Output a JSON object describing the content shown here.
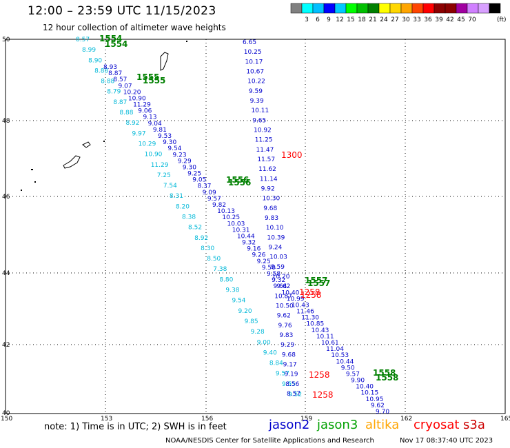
{
  "header": {
    "title": "12:00 – 23:59 UTC 11/15/2023",
    "subtitle": "12 hour collection of altimeter wave heights"
  },
  "colorbar": {
    "colors": [
      "#808080",
      "#00ffff",
      "#00bfff",
      "#0000ff",
      "#00c8ff",
      "#00ff00",
      "#00c000",
      "#008000",
      "#ffff00",
      "#ffd700",
      "#ffa500",
      "#ff4500",
      "#ff0000",
      "#8b0000",
      "#8b0000",
      "#a000a0",
      "#d080ff",
      "#d8a0ff",
      "#000000"
    ],
    "labels": [
      "3",
      "6",
      "9",
      "12",
      "15",
      "18",
      "21",
      "24",
      "27",
      "30",
      "33",
      "36",
      "39",
      "42",
      "45",
      "70"
    ],
    "unit": "(ft)"
  },
  "axes": {
    "lat_ticks": [
      "50",
      "48",
      "46",
      "44",
      "42",
      "40"
    ],
    "lon_ticks": [
      "150",
      "153",
      "156",
      "159",
      "162",
      "165"
    ]
  },
  "tracks": {
    "cyan": [
      "8.57",
      "8.99",
      "8.90",
      "8.88",
      "8.88",
      "8.79",
      "8.87",
      "8.88",
      "8.92",
      "9.97",
      "10.29",
      "10.90",
      "11.29",
      "7.25",
      "7.54",
      "8.31",
      "8.20",
      "8.38",
      "8.52",
      "8.92",
      "8.30",
      "8.50",
      "7.38",
      "8.80",
      "9.38",
      "9.54",
      "9.20",
      "9.85",
      "9.28",
      "9.00",
      "9.40",
      "8.84",
      "9.57",
      "9.55",
      "9.52"
    ],
    "blue_main": [
      "8.93",
      "8.87",
      "8.57",
      "9.07",
      "10.20",
      "10.90",
      "11.29",
      "9.06",
      "9.13",
      "9.04",
      "9.81",
      "9.53",
      "9.30",
      "9.54",
      "9.23",
      "9.29",
      "9.30",
      "9.25",
      "9.05",
      "8.37",
      "9.09",
      "9.57",
      "9.82",
      "10.13",
      "10.25",
      "10.03",
      "10.31",
      "10.44",
      "9.32",
      "9.16",
      "9.26",
      "9.25",
      "9.50",
      "9.58",
      "9.32",
      "9.62",
      "10.40",
      "10.99",
      "10.43",
      "11.46",
      "11.30",
      "10.85",
      "10.43",
      "10.11",
      "10.61",
      "11.04",
      "10.53",
      "10.44",
      "9.50",
      "9.57",
      "9.90",
      "10.40",
      "10.15",
      "10.95",
      "9.62",
      "9.70"
    ],
    "blue_col": [
      "6.65",
      "10.25",
      "10.17",
      "10.67",
      "10.22",
      "9.59",
      "9.39",
      "10.11",
      "9.65",
      "10.92",
      "11.25",
      "11.47",
      "11.57",
      "11.62",
      "11.14",
      "9.92",
      "10.30",
      "9.68",
      "9.83",
      "10.10",
      "10.39",
      "9.24",
      "10.03",
      "9.59",
      "10.20",
      "9.64",
      "10.87",
      "10.50",
      "9.62",
      "9.76",
      "9.83",
      "9.29",
      "9.68",
      "9.17",
      "9.19",
      "8.56",
      "8.57"
    ],
    "green": [
      "1554",
      "1554",
      "1555",
      "1555",
      "1556",
      "1556",
      "1557",
      "1557",
      "1558",
      "1558"
    ],
    "red": [
      "1300",
      "1258",
      "1258",
      "1258",
      "1258"
    ]
  },
  "note": "note: 1) Time is in UTC; 2) SWH is in feet",
  "legend": {
    "jason2": {
      "label": "jason2",
      "color": "#0000cc"
    },
    "jason3": {
      "label": "jason3",
      "color": "#00a000"
    },
    "altika": {
      "label": "altika",
      "color": "#ffa500"
    },
    "cryosat": {
      "label": "cryosat",
      "color": "#ff0000"
    },
    "s3a": {
      "label": "s3a",
      "color": "#cc0000"
    }
  },
  "credit": {
    "left": "NOAA/NESDIS Center for Satellite Applications and Research",
    "right": "Nov 17 08:37:40 UTC 2023"
  }
}
